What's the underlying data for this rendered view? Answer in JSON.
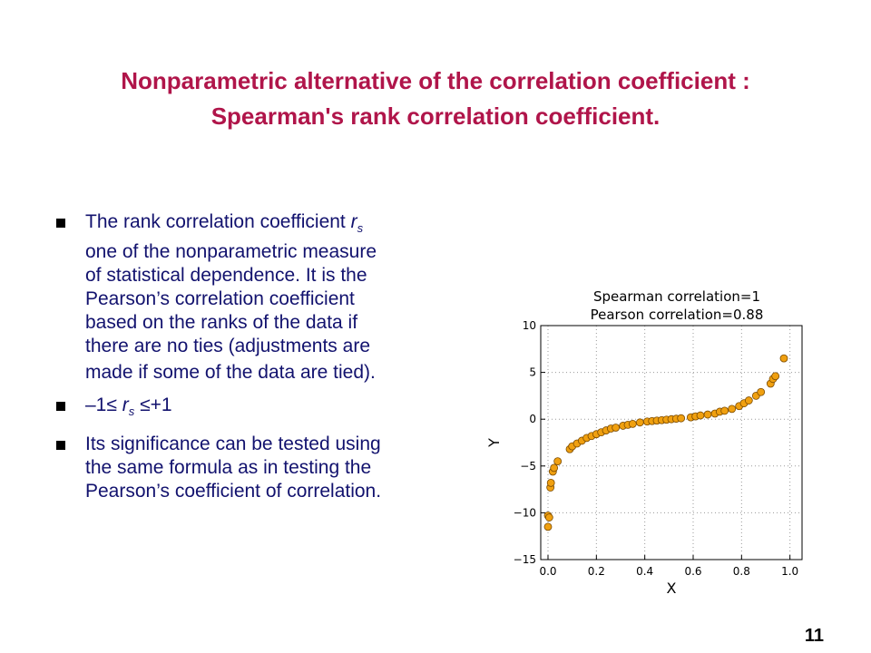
{
  "slide": {
    "title_line1": "Nonparametric alternative of the correlation coefficient :",
    "title_line2": "Spearman's rank correlation coefficient.",
    "page_number": "11"
  },
  "bullets": [
    {
      "lines": [
        "The rank correlation coefficient",
        "one of the nonparametric measure",
        "of statistical dependence. It is the",
        "Pearson’s correlation coefficient",
        "based on the ranks of the data if",
        "there are no ties (adjustments are",
        "made if some of the data are tied)."
      ],
      "symbol": "r",
      "subscript": "s"
    },
    {
      "prefix": "–1≤",
      "symbol": "r",
      "subscript": "s",
      "suffix": "≤+1"
    },
    {
      "lines": [
        "Its significance can be tested using",
        "the same formula as in testing the",
        "Pearson’s coefficient of correlation."
      ]
    }
  ],
  "chart_data": {
    "type": "scatter",
    "title_line1": "Spearman correlation=1",
    "title_line2": "Pearson correlation=0.88",
    "xlabel": "X",
    "ylabel": "Y",
    "xlim": [
      -0.03,
      1.05
    ],
    "ylim": [
      -15,
      10
    ],
    "xticks": [
      "0.0",
      "0.2",
      "0.4",
      "0.6",
      "0.8",
      "1.0"
    ],
    "yticks": [
      "−15",
      "−10",
      "−5",
      "0",
      "5",
      "10"
    ],
    "xtick_values": [
      0,
      0.2,
      0.4,
      0.6,
      0.8,
      1.0
    ],
    "ytick_values": [
      -15,
      -10,
      -5,
      0,
      5,
      10
    ],
    "grid": true,
    "marker_color": "#f0a010",
    "marker_edge": "#7a4a00",
    "points": [
      {
        "x": 0.0,
        "y": -11.5
      },
      {
        "x": 0.0,
        "y": -10.3
      },
      {
        "x": 0.005,
        "y": -10.5
      },
      {
        "x": 0.01,
        "y": -7.3
      },
      {
        "x": 0.012,
        "y": -6.8
      },
      {
        "x": 0.02,
        "y": -5.6
      },
      {
        "x": 0.025,
        "y": -5.2
      },
      {
        "x": 0.04,
        "y": -4.5
      },
      {
        "x": 0.09,
        "y": -3.2
      },
      {
        "x": 0.1,
        "y": -2.9
      },
      {
        "x": 0.12,
        "y": -2.6
      },
      {
        "x": 0.14,
        "y": -2.3
      },
      {
        "x": 0.16,
        "y": -2.0
      },
      {
        "x": 0.18,
        "y": -1.8
      },
      {
        "x": 0.2,
        "y": -1.6
      },
      {
        "x": 0.22,
        "y": -1.4
      },
      {
        "x": 0.24,
        "y": -1.2
      },
      {
        "x": 0.26,
        "y": -1.0
      },
      {
        "x": 0.28,
        "y": -0.9
      },
      {
        "x": 0.31,
        "y": -0.7
      },
      {
        "x": 0.33,
        "y": -0.6
      },
      {
        "x": 0.35,
        "y": -0.5
      },
      {
        "x": 0.38,
        "y": -0.35
      },
      {
        "x": 0.41,
        "y": -0.25
      },
      {
        "x": 0.43,
        "y": -0.2
      },
      {
        "x": 0.45,
        "y": -0.15
      },
      {
        "x": 0.47,
        "y": -0.1
      },
      {
        "x": 0.49,
        "y": -0.05
      },
      {
        "x": 0.51,
        "y": 0.0
      },
      {
        "x": 0.53,
        "y": 0.05
      },
      {
        "x": 0.55,
        "y": 0.1
      },
      {
        "x": 0.59,
        "y": 0.2
      },
      {
        "x": 0.61,
        "y": 0.3
      },
      {
        "x": 0.63,
        "y": 0.4
      },
      {
        "x": 0.66,
        "y": 0.5
      },
      {
        "x": 0.69,
        "y": 0.6
      },
      {
        "x": 0.71,
        "y": 0.8
      },
      {
        "x": 0.73,
        "y": 0.9
      },
      {
        "x": 0.76,
        "y": 1.1
      },
      {
        "x": 0.79,
        "y": 1.4
      },
      {
        "x": 0.81,
        "y": 1.7
      },
      {
        "x": 0.83,
        "y": 2.0
      },
      {
        "x": 0.86,
        "y": 2.5
      },
      {
        "x": 0.88,
        "y": 2.9
      },
      {
        "x": 0.92,
        "y": 3.8
      },
      {
        "x": 0.93,
        "y": 4.3
      },
      {
        "x": 0.94,
        "y": 4.6
      },
      {
        "x": 0.975,
        "y": 6.5
      }
    ]
  }
}
